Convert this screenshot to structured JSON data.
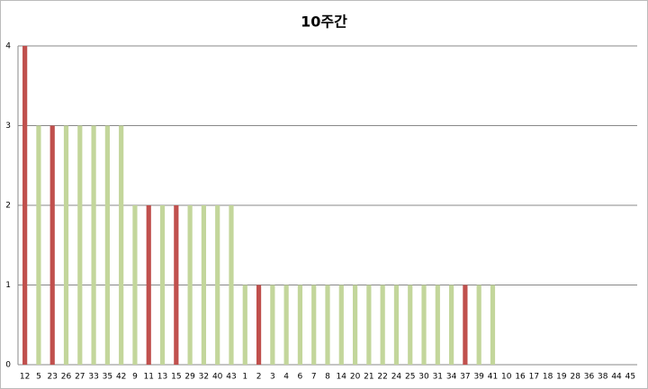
{
  "chart_data": {
    "type": "bar",
    "title": "10주간",
    "categories": [
      "12",
      "5",
      "23",
      "26",
      "27",
      "33",
      "35",
      "42",
      "9",
      "11",
      "13",
      "15",
      "29",
      "32",
      "40",
      "43",
      "1",
      "2",
      "3",
      "4",
      "6",
      "7",
      "8",
      "14",
      "20",
      "21",
      "22",
      "24",
      "25",
      "30",
      "31",
      "34",
      "37",
      "39",
      "41",
      "10",
      "16",
      "17",
      "18",
      "19",
      "28",
      "36",
      "38",
      "44",
      "45"
    ],
    "values": [
      4,
      3,
      3,
      3,
      3,
      3,
      3,
      3,
      2,
      2,
      2,
      2,
      2,
      2,
      2,
      2,
      1,
      1,
      1,
      1,
      1,
      1,
      1,
      1,
      1,
      1,
      1,
      1,
      1,
      1,
      1,
      1,
      1,
      1,
      1,
      0,
      0,
      0,
      0,
      0,
      0,
      0,
      0,
      0,
      0
    ],
    "colors": [
      "#c0504d",
      "#c3d69b",
      "#c0504d",
      "#c3d69b",
      "#c3d69b",
      "#c3d69b",
      "#c3d69b",
      "#c3d69b",
      "#c3d69b",
      "#c0504d",
      "#c3d69b",
      "#c0504d",
      "#c3d69b",
      "#c3d69b",
      "#c3d69b",
      "#c3d69b",
      "#c3d69b",
      "#c0504d",
      "#c3d69b",
      "#c3d69b",
      "#c3d69b",
      "#c3d69b",
      "#c3d69b",
      "#c3d69b",
      "#c3d69b",
      "#c3d69b",
      "#c3d69b",
      "#c3d69b",
      "#c3d69b",
      "#c3d69b",
      "#c3d69b",
      "#c3d69b",
      "#c0504d",
      "#c3d69b",
      "#c3d69b",
      "#c3d69b",
      "#c3d69b",
      "#c3d69b",
      "#c3d69b",
      "#c3d69b",
      "#c3d69b",
      "#c3d69b",
      "#c3d69b",
      "#c3d69b",
      "#c3d69b"
    ],
    "ylim": [
      0,
      4
    ],
    "yticks": [
      0,
      1,
      2,
      3,
      4
    ],
    "grid": true
  }
}
